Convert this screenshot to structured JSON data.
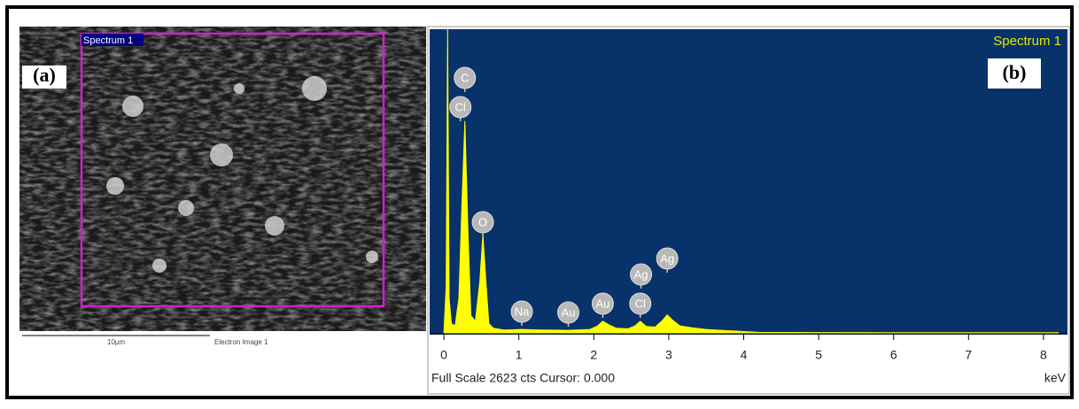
{
  "image_panel": {
    "panel_label": "(a)",
    "region_label": "Spectrum 1",
    "scale_bar": "10µm",
    "image_name": "Electron Image 1"
  },
  "chart_data": {
    "type": "area",
    "panel_label": "(b)",
    "footer": "Full Scale 2623 cts Cursor: 0.000",
    "x_label": "keV",
    "x": [
      0,
      0.03,
      0.05,
      0.07,
      0.1,
      0.15,
      0.2,
      0.24,
      0.28,
      0.32,
      0.36,
      0.42,
      0.48,
      0.52,
      0.56,
      0.6,
      0.66,
      0.8,
      1.04,
      1.3,
      1.66,
      1.95,
      2.05,
      2.12,
      2.2,
      2.3,
      2.45,
      2.55,
      2.62,
      2.7,
      2.82,
      2.92,
      2.98,
      3.05,
      3.15,
      3.3,
      3.5,
      3.7,
      3.9,
      4.05,
      4.2,
      5,
      6,
      7,
      8.2
    ],
    "series": [
      {
        "name": "Spectrum 1",
        "color": "#ffff00",
        "values": [
          0,
          400,
          2623,
          300,
          80,
          60,
          300,
          1100,
          1830,
          900,
          150,
          100,
          450,
          850,
          450,
          80,
          40,
          25,
          30,
          25,
          22,
          30,
          60,
          100,
          70,
          40,
          35,
          60,
          100,
          55,
          50,
          110,
          155,
          110,
          60,
          45,
          30,
          22,
          15,
          10,
          5,
          3,
          2,
          2,
          2
        ]
      }
    ],
    "xlim": [
      -0.19,
      8.32
    ],
    "ylim": [
      0,
      2623
    ],
    "xticks": [
      0,
      1,
      2,
      3,
      4,
      5,
      6,
      7,
      8
    ],
    "annotations": [
      {
        "text": "C",
        "x": 0.28
      },
      {
        "text": "Cl",
        "x": 0.22
      },
      {
        "text": "O",
        "x": 0.52
      },
      {
        "text": "Na",
        "x": 1.04
      },
      {
        "text": "Au",
        "x": 1.66
      },
      {
        "text": "Au",
        "x": 2.12
      },
      {
        "text": "Cl",
        "x": 2.62
      },
      {
        "text": "Ag",
        "x": 2.63
      },
      {
        "text": "Ag",
        "x": 2.98
      }
    ]
  }
}
